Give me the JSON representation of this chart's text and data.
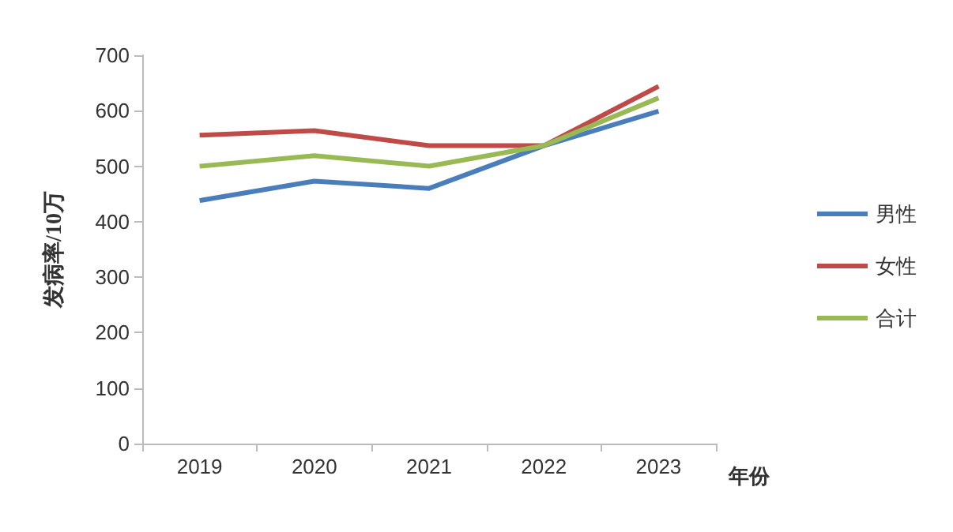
{
  "chart_data": {
    "type": "line",
    "xlabel": "年份",
    "ylabel": "发病率/10万",
    "categories": [
      "2019",
      "2020",
      "2021",
      "2022",
      "2023"
    ],
    "series": [
      {
        "name": "男性",
        "color": "#4a7ebb",
        "values": [
          438,
          473,
          460,
          537,
          599
        ]
      },
      {
        "name": "女性",
        "color": "#be4b48",
        "values": [
          556,
          564,
          537,
          537,
          644
        ]
      },
      {
        "name": "合计",
        "color": "#98b954",
        "values": [
          500,
          519,
          500,
          537,
          623
        ]
      }
    ],
    "ylim": [
      0,
      700
    ],
    "yticks": [
      0,
      100,
      200,
      300,
      400,
      500,
      600,
      700
    ],
    "grid": false,
    "legend": "right"
  }
}
